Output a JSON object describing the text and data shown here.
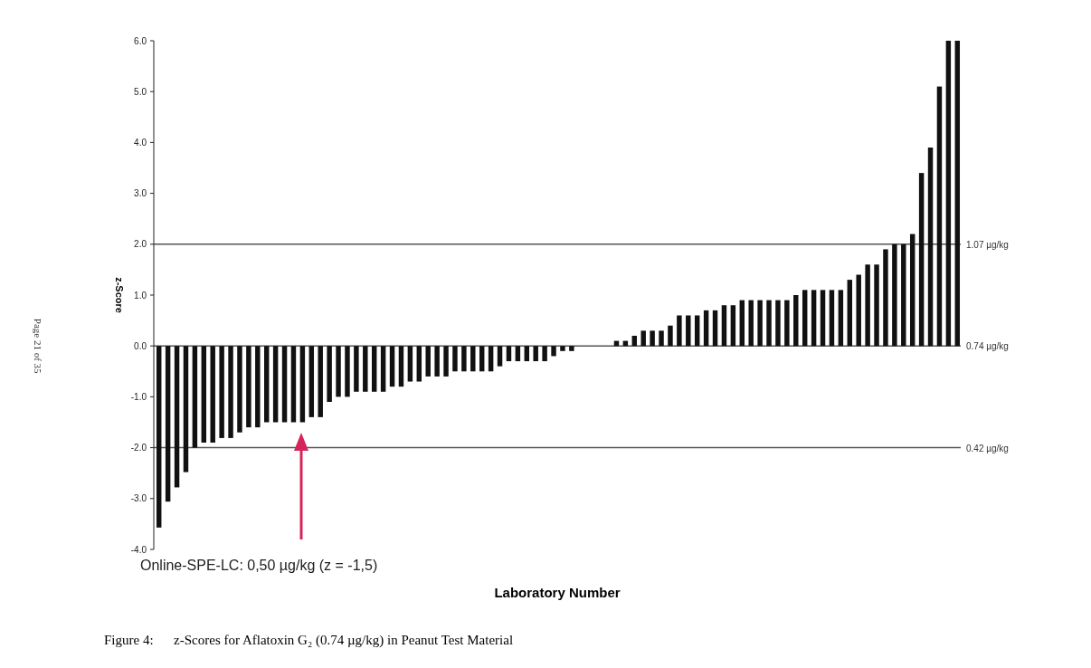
{
  "chart_data": {
    "type": "bar",
    "title": "Figure 4:      z-Scores for Aflatoxin G₂ (0.74 µg/kg) in Peanut Test Material",
    "xlabel": "Laboratory Number",
    "ylabel": "z-Score",
    "categories": [
      null,
      null,
      null,
      null,
      null,
      null,
      null,
      null,
      null,
      null,
      null,
      null,
      null,
      null,
      null,
      null,
      null,
      null,
      null,
      null,
      null,
      null,
      null,
      null,
      null,
      null,
      null,
      null,
      null,
      null,
      null,
      null,
      null,
      null,
      null,
      null,
      null,
      null,
      null,
      null,
      null,
      null,
      null,
      null,
      null,
      null,
      null,
      null,
      null,
      null,
      null,
      null,
      null,
      null,
      null,
      null,
      null,
      null,
      null,
      null,
      null,
      null,
      null,
      null,
      null,
      null,
      null,
      null,
      null,
      null,
      null,
      null,
      null,
      null,
      null,
      null,
      null,
      null,
      null,
      null,
      null,
      null,
      null,
      null,
      null,
      null,
      null,
      null,
      null,
      null
    ],
    "values": [
      -3.57,
      -3.06,
      -2.78,
      -2.48,
      -2.0,
      -1.9,
      -1.9,
      -1.81,
      -1.81,
      -1.7,
      -1.6,
      -1.6,
      -1.5,
      -1.5,
      -1.5,
      -1.5,
      -1.5,
      -1.4,
      -1.4,
      -1.1,
      -1.0,
      -1.0,
      -0.9,
      -0.9,
      -0.9,
      -0.9,
      -0.8,
      -0.8,
      -0.7,
      -0.7,
      -0.6,
      -0.6,
      -0.6,
      -0.5,
      -0.5,
      -0.5,
      -0.5,
      -0.5,
      -0.4,
      -0.3,
      -0.3,
      -0.3,
      -0.3,
      -0.3,
      -0.2,
      -0.1,
      -0.1,
      null,
      null,
      null,
      null,
      0.1,
      0.1,
      0.2,
      0.3,
      0.3,
      0.3,
      0.4,
      0.6,
      0.6,
      0.6,
      0.7,
      0.7,
      0.8,
      0.8,
      0.9,
      0.9,
      0.9,
      0.9,
      0.9,
      0.9,
      1.0,
      1.1,
      1.1,
      1.1,
      1.1,
      1.1,
      1.3,
      1.4,
      1.6,
      1.6,
      1.9,
      2.0,
      2.0,
      2.2,
      3.4,
      3.9,
      5.1,
      6.0,
      6.0
    ],
    "color": "#111111",
    "ylim": [
      -4,
      6
    ],
    "yticks": [
      {
        "value": 6,
        "label": "6.0"
      },
      {
        "value": 5,
        "label": "5.0"
      },
      {
        "value": 4,
        "label": "4.0"
      },
      {
        "value": 3,
        "label": "3.0"
      },
      {
        "value": 2,
        "label": "2.0"
      },
      {
        "value": 1,
        "label": "1.0"
      },
      {
        "value": 0,
        "label": "0.0"
      },
      {
        "value": -1,
        "label": "-1.0"
      },
      {
        "value": -2,
        "label": "-2.0"
      },
      {
        "value": -3,
        "label": "-3.0"
      },
      {
        "value": -4,
        "label": "-4.0"
      }
    ],
    "ref_lines": [
      {
        "axis": "y",
        "value": 2,
        "label": "1.07 µg/kg",
        "color": "#555555"
      },
      {
        "axis": "y",
        "value": 0,
        "label": "0.74 µg/kg",
        "color": "#555555"
      },
      {
        "axis": "y",
        "value": -2,
        "label": "0.42 µg/kg",
        "color": "#555555"
      }
    ],
    "annotations": [
      "Online-SPE-LC: 0,50 µg/kg (z = -1,5)",
      "Page 21 of 35"
    ],
    "grid": false
  }
}
